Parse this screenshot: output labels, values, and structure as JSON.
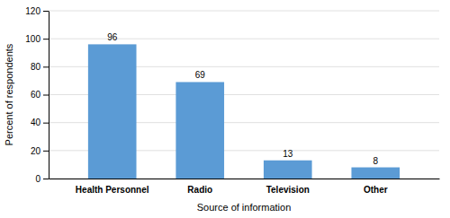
{
  "chart_data": {
    "type": "bar",
    "categories": [
      "Health Personnel",
      "Radio",
      "Television",
      "Other"
    ],
    "values": [
      96,
      69,
      13,
      8
    ],
    "color": "#5b9bd5",
    "xlabel": "Source of information",
    "ylabel": "Percent of respondents",
    "ylim": [
      0,
      120
    ],
    "yticks": [
      0,
      20,
      40,
      60,
      80,
      100,
      120
    ],
    "grid": true,
    "data_labels": true
  }
}
